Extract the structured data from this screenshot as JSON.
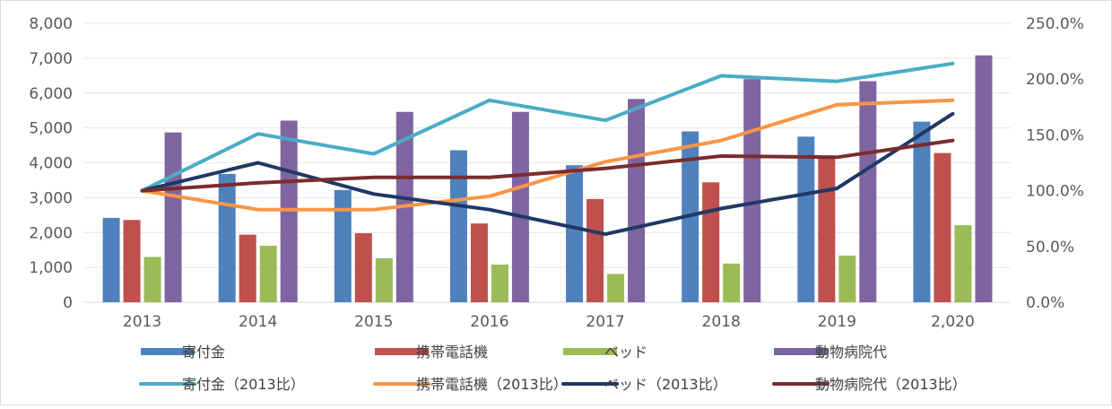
{
  "chart_data": {
    "type": "bar",
    "categories": [
      "2013",
      "2014",
      "2015",
      "2016",
      "2017",
      "2018",
      "2019",
      "2,020"
    ],
    "left_axis": {
      "ylim": [
        0,
        8000
      ],
      "ticks": [
        0,
        1000,
        2000,
        3000,
        4000,
        5000,
        6000,
        7000,
        8000
      ],
      "tick_labels": [
        "0",
        "1,000",
        "2,000",
        "3,000",
        "4,000",
        "5,000",
        "6,000",
        "7,000",
        "8,000"
      ]
    },
    "right_axis": {
      "ylim": [
        0,
        250
      ],
      "ticks": [
        0,
        50,
        100,
        150,
        200,
        250
      ],
      "tick_labels": [
        "0.0%",
        "50.0%",
        "100.0%",
        "150.0%",
        "200.0%",
        "250.0%"
      ]
    },
    "grid": true,
    "legend_position": "bottom",
    "bar_series": [
      {
        "name": "寄付金",
        "color": "#4f81bd",
        "values": [
          2420,
          3680,
          3220,
          4360,
          3930,
          4900,
          4750,
          5180
        ]
      },
      {
        "name": "携帯電話機",
        "color": "#c0504d",
        "values": [
          2360,
          1940,
          1980,
          2260,
          2960,
          3440,
          4150,
          4280
        ]
      },
      {
        "name": "ベッド",
        "color": "#9bbb59",
        "values": [
          1300,
          1620,
          1260,
          1080,
          810,
          1110,
          1340,
          2210
        ]
      },
      {
        "name": "動物病院代",
        "color": "#8064a2",
        "values": [
          4870,
          5210,
          5460,
          5460,
          5830,
          6400,
          6340,
          7080
        ]
      }
    ],
    "line_series": [
      {
        "name": "寄付金（2013比）",
        "color": "#4bacc6",
        "values": [
          100,
          151,
          133,
          181,
          163,
          203,
          198,
          214
        ]
      },
      {
        "name": "携帯電話機（2013比）",
        "color": "#f79646",
        "values": [
          100,
          83,
          83,
          95,
          126,
          145,
          177,
          181
        ]
      },
      {
        "name": "ベッド（2013比）",
        "color": "#1f3864",
        "values": [
          100,
          125,
          97,
          83,
          61,
          84,
          102,
          169
        ]
      },
      {
        "name": "動物病院代（2013比）",
        "color": "#7b2c2c",
        "values": [
          100,
          107,
          112,
          112,
          120,
          131,
          130,
          145
        ]
      }
    ]
  }
}
